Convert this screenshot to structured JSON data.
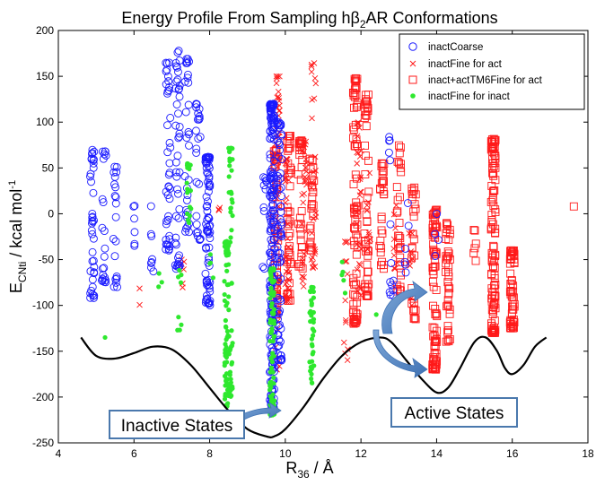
{
  "chart_data": {
    "type": "scatter",
    "title_pre": "Energy Profile From Sampling h",
    "title_beta": "β",
    "title_sub": "2",
    "title_post": "AR Conformations",
    "xlabel_main": "R",
    "xlabel_sub": "36",
    "xlabel_unit": " / Å",
    "ylabel_main": "E",
    "ylabel_sub": "CNti",
    "ylabel_unit": " / kcal mol",
    "ylabel_sup": "-1",
    "xlim": [
      4,
      18
    ],
    "ylim": [
      -250,
      200
    ],
    "xticks": [
      "4",
      "6",
      "8",
      "10",
      "12",
      "14",
      "16",
      "18"
    ],
    "yticks": [
      "200",
      "150",
      "100",
      "50",
      "0",
      "-50",
      "-100",
      "-150",
      "-200",
      "-250"
    ],
    "grid": false,
    "legend_position": "top-right",
    "series": [
      {
        "name": "inactCoarse",
        "marker": "circle",
        "color": "#1a1aff",
        "clusters": [
          {
            "x": 4.9,
            "y_min": -92,
            "y_max": 70,
            "n": 40
          },
          {
            "x": 5.2,
            "y_min": -75,
            "y_max": 68,
            "n": 22
          },
          {
            "x": 5.5,
            "y_min": -80,
            "y_max": 55,
            "n": 20
          },
          {
            "x": 6.0,
            "y_min": -35,
            "y_max": 15,
            "n": 6
          },
          {
            "x": 6.5,
            "y_min": -65,
            "y_max": 10,
            "n": 8
          },
          {
            "x": 6.9,
            "y_min": -40,
            "y_max": 165,
            "n": 40
          },
          {
            "x": 7.15,
            "y_min": -60,
            "y_max": 178,
            "n": 45
          },
          {
            "x": 7.4,
            "y_min": -20,
            "y_max": 170,
            "n": 30
          },
          {
            "x": 7.7,
            "y_min": -30,
            "y_max": 120,
            "n": 25
          },
          {
            "x": 7.95,
            "y_min": -100,
            "y_max": 62,
            "n": 80
          },
          {
            "x": 9.45,
            "y_min": -60,
            "y_max": 40,
            "n": 10
          },
          {
            "x": 9.65,
            "y_min": -215,
            "y_max": 120,
            "n": 220
          },
          {
            "x": 9.85,
            "y_min": -160,
            "y_max": 100,
            "n": 70
          },
          {
            "x": 12.8,
            "y_min": -90,
            "y_max": 88,
            "n": 14
          },
          {
            "x": 13.2,
            "y_min": -70,
            "y_max": 20,
            "n": 6
          },
          {
            "x": 14.0,
            "y_min": -95,
            "y_max": 0,
            "n": 4
          }
        ]
      },
      {
        "name": "inactFine for act",
        "marker": "x",
        "color": "#ff1a1a",
        "clusters": [
          {
            "x": 6.2,
            "y_min": -100,
            "y_max": -80,
            "n": 2
          },
          {
            "x": 7.3,
            "y_min": -100,
            "y_max": -50,
            "n": 6
          },
          {
            "x": 8.3,
            "y_min": -20,
            "y_max": 10,
            "n": 3
          },
          {
            "x": 9.8,
            "y_min": -170,
            "y_max": 150,
            "n": 50
          },
          {
            "x": 10.05,
            "y_min": -100,
            "y_max": 60,
            "n": 40
          },
          {
            "x": 10.5,
            "y_min": -80,
            "y_max": 80,
            "n": 30
          },
          {
            "x": 10.75,
            "y_min": -60,
            "y_max": 165,
            "n": 28
          },
          {
            "x": 11.6,
            "y_min": -160,
            "y_max": -30,
            "n": 14
          },
          {
            "x": 11.95,
            "y_min": -90,
            "y_max": 100,
            "n": 28
          },
          {
            "x": 12.2,
            "y_min": -40,
            "y_max": 50,
            "n": 10
          },
          {
            "x": 12.9,
            "y_min": -60,
            "y_max": 10,
            "n": 10
          },
          {
            "x": 13.3,
            "y_min": -100,
            "y_max": -20,
            "n": 12
          }
        ]
      },
      {
        "name": "inact+actTM6Fine for act",
        "marker": "square",
        "color": "#ff1a1a",
        "clusters": [
          {
            "x": 9.75,
            "y_min": -110,
            "y_max": 70,
            "n": 55
          },
          {
            "x": 10.1,
            "y_min": -95,
            "y_max": 85,
            "n": 45
          },
          {
            "x": 10.4,
            "y_min": -60,
            "y_max": 80,
            "n": 32
          },
          {
            "x": 10.7,
            "y_min": -40,
            "y_max": 60,
            "n": 28
          },
          {
            "x": 11.85,
            "y_min": -120,
            "y_max": 148,
            "n": 75
          },
          {
            "x": 12.15,
            "y_min": -90,
            "y_max": 130,
            "n": 50
          },
          {
            "x": 12.55,
            "y_min": -60,
            "y_max": 55,
            "n": 28
          },
          {
            "x": 13.0,
            "y_min": -85,
            "y_max": 75,
            "n": 32
          },
          {
            "x": 13.4,
            "y_min": -115,
            "y_max": 30,
            "n": 30
          },
          {
            "x": 13.95,
            "y_min": -170,
            "y_max": 5,
            "n": 85
          },
          {
            "x": 14.3,
            "y_min": -140,
            "y_max": -10,
            "n": 40
          },
          {
            "x": 15.0,
            "y_min": -80,
            "y_max": -10,
            "n": 6
          },
          {
            "x": 15.5,
            "y_min": -130,
            "y_max": 82,
            "n": 110
          },
          {
            "x": 16.0,
            "y_min": -125,
            "y_max": -40,
            "n": 60
          },
          {
            "x": 17.6,
            "y_min": 8,
            "y_max": 8,
            "n": 1
          }
        ]
      },
      {
        "name": "inactFine for inact",
        "marker": "dot",
        "color": "#2ee82e",
        "clusters": [
          {
            "x": 5.2,
            "y_min": -135,
            "y_max": -135,
            "n": 1
          },
          {
            "x": 6.7,
            "y_min": -85,
            "y_max": -65,
            "n": 3
          },
          {
            "x": 7.2,
            "y_min": -130,
            "y_max": -55,
            "n": 8
          },
          {
            "x": 7.45,
            "y_min": -10,
            "y_max": 55,
            "n": 18
          },
          {
            "x": 8.05,
            "y_min": -80,
            "y_max": -40,
            "n": 4
          },
          {
            "x": 8.45,
            "y_min": -210,
            "y_max": -30,
            "n": 70
          },
          {
            "x": 8.55,
            "y_min": -200,
            "y_max": 72,
            "n": 55
          },
          {
            "x": 9.65,
            "y_min": -220,
            "y_max": -60,
            "n": 90
          },
          {
            "x": 10.7,
            "y_min": -185,
            "y_max": -80,
            "n": 40
          },
          {
            "x": 11.55,
            "y_min": -90,
            "y_max": -50,
            "n": 5
          },
          {
            "x": 12.35,
            "y_min": -110,
            "y_max": -105,
            "n": 1
          }
        ]
      }
    ],
    "energy_curve": {
      "x": [
        4.6,
        5.0,
        5.5,
        6.0,
        6.5,
        7.0,
        7.5,
        8.0,
        8.5,
        9.0,
        9.5,
        9.7,
        10.0,
        10.5,
        11.0,
        11.5,
        12.0,
        12.5,
        12.8,
        13.2,
        13.6,
        14.0,
        14.3,
        14.6,
        15.0,
        15.3,
        15.6,
        15.8,
        16.0,
        16.3,
        16.6,
        16.9
      ],
      "y": [
        -135,
        -155,
        -158,
        -152,
        -145,
        -148,
        -165,
        -190,
        -215,
        -235,
        -243,
        -243,
        -235,
        -210,
        -180,
        -155,
        -140,
        -135,
        -140,
        -160,
        -180,
        -195,
        -190,
        -170,
        -140,
        -135,
        -150,
        -168,
        -175,
        -165,
        -145,
        -135
      ]
    },
    "annotations": [
      {
        "text": "Inactive States",
        "x": 9.55,
        "y": -225
      },
      {
        "text": "Active States",
        "x": 13.6,
        "y": -210
      }
    ]
  }
}
